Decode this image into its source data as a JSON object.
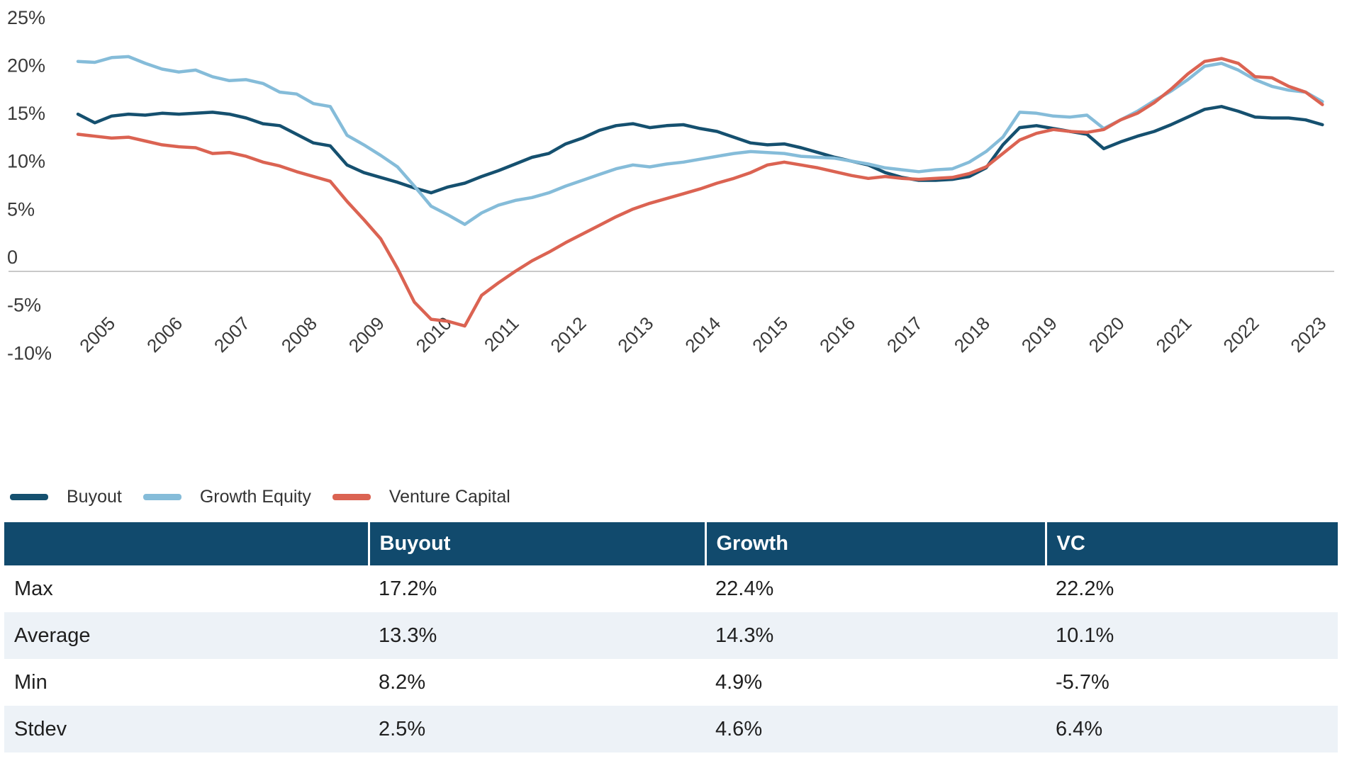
{
  "chart_data": {
    "type": "line",
    "title": "",
    "xlabel": "",
    "ylabel": "",
    "x_frequency": "quarterly",
    "x_range": [
      "2005Q1",
      "2023Q3"
    ],
    "year_labels": [
      "2005",
      "2006",
      "2007",
      "2008",
      "2009",
      "2010",
      "2011",
      "2012",
      "2013",
      "2014",
      "2015",
      "2016",
      "2017",
      "2018",
      "2019",
      "2020",
      "2021",
      "2022",
      "2023"
    ],
    "y_ticks": [
      {
        "label": "25%",
        "value": 25
      },
      {
        "label": "20%",
        "value": 20
      },
      {
        "label": "15%",
        "value": 15
      },
      {
        "label": "10%",
        "value": 10
      },
      {
        "label": "5%",
        "value": 5
      },
      {
        "label": "0",
        "value": 0
      },
      {
        "label": "-5%",
        "value": -5
      },
      {
        "label": "-10%",
        "value": -10
      }
    ],
    "ylim": [
      -10,
      25
    ],
    "grid": "zero-line-only",
    "legend_position": "bottom-left",
    "series": [
      {
        "name": "Buyout",
        "color": "#15506f",
        "values": [
          16.4,
          15.5,
          16.2,
          16.4,
          16.3,
          16.5,
          16.4,
          16.5,
          16.6,
          16.4,
          16.0,
          15.4,
          15.2,
          14.3,
          13.4,
          13.1,
          11.1,
          10.3,
          9.8,
          9.3,
          8.7,
          8.2,
          8.8,
          9.2,
          9.9,
          10.5,
          11.2,
          11.9,
          12.3,
          13.3,
          13.9,
          14.7,
          15.2,
          15.4,
          15.0,
          15.2,
          15.3,
          14.9,
          14.6,
          14.0,
          13.4,
          13.2,
          13.3,
          12.9,
          12.4,
          11.9,
          11.5,
          11.1,
          10.3,
          9.8,
          9.5,
          9.5,
          9.6,
          9.9,
          10.8,
          13.2,
          15.0,
          15.2,
          14.9,
          14.6,
          14.3,
          12.8,
          13.5,
          14.1,
          14.6,
          15.3,
          16.1,
          16.9,
          17.2,
          16.7,
          16.1,
          16.0,
          16.0,
          15.8,
          15.3
        ]
      },
      {
        "name": "Growth Equity",
        "color": "#85bcd9",
        "values": [
          21.9,
          21.8,
          22.3,
          22.4,
          21.7,
          21.1,
          20.8,
          21.0,
          20.3,
          19.9,
          20.0,
          19.6,
          18.7,
          18.5,
          17.5,
          17.2,
          14.2,
          13.2,
          12.1,
          10.9,
          8.9,
          6.8,
          5.9,
          4.9,
          6.1,
          6.9,
          7.4,
          7.7,
          8.2,
          8.9,
          9.5,
          10.1,
          10.7,
          11.1,
          10.9,
          11.2,
          11.4,
          11.7,
          12.0,
          12.3,
          12.5,
          12.4,
          12.3,
          12.0,
          11.9,
          11.8,
          11.5,
          11.2,
          10.8,
          10.6,
          10.4,
          10.6,
          10.7,
          11.4,
          12.5,
          14.0,
          16.6,
          16.5,
          16.2,
          16.1,
          16.3,
          14.9,
          15.8,
          16.7,
          17.8,
          18.8,
          20.0,
          21.4,
          21.7,
          21.0,
          20.0,
          19.3,
          18.9,
          18.7,
          17.7
        ]
      },
      {
        "name": "Venture Capital",
        "color": "#db6352",
        "values": [
          14.3,
          14.1,
          13.9,
          14.0,
          13.6,
          13.2,
          13.0,
          12.9,
          12.3,
          12.4,
          12.0,
          11.4,
          11.0,
          10.4,
          9.9,
          9.4,
          7.3,
          5.4,
          3.4,
          0.3,
          -3.2,
          -5.0,
          -5.2,
          -5.7,
          -2.5,
          -1.2,
          0.0,
          1.1,
          2.0,
          3.0,
          3.9,
          4.8,
          5.7,
          6.5,
          7.1,
          7.6,
          8.1,
          8.6,
          9.2,
          9.7,
          10.3,
          11.1,
          11.4,
          11.1,
          10.8,
          10.4,
          10.0,
          9.7,
          9.9,
          9.7,
          9.6,
          9.7,
          9.8,
          10.2,
          10.9,
          12.3,
          13.7,
          14.4,
          14.8,
          14.6,
          14.5,
          14.8,
          15.8,
          16.5,
          17.6,
          19.0,
          20.6,
          21.9,
          22.2,
          21.7,
          20.3,
          20.2,
          19.3,
          18.7,
          17.4
        ]
      }
    ]
  },
  "legend": {
    "items": [
      {
        "label": "Buyout",
        "color": "#15506f"
      },
      {
        "label": "Growth Equity",
        "color": "#85bcd9"
      },
      {
        "label": "Venture Capital",
        "color": "#db6352"
      }
    ]
  },
  "table": {
    "headers": {
      "label": "",
      "buyout": "Buyout",
      "growth": "Growth",
      "vc": "VC"
    },
    "rows": [
      {
        "label": "Max",
        "buyout": "17.2%",
        "growth": "22.4%",
        "vc": "22.2%"
      },
      {
        "label": "Average",
        "buyout": "13.3%",
        "growth": "14.3%",
        "vc": "10.1%"
      },
      {
        "label": "Min",
        "buyout": "8.2%",
        "growth": "4.9%",
        "vc": "-5.7%"
      },
      {
        "label": "Stdev",
        "buyout": "2.5%",
        "growth": "4.6%",
        "vc": "6.4%"
      }
    ]
  },
  "colors": {
    "table_header_bg": "#114a6d",
    "table_row_alt_bg": "#edf2f7",
    "axis_text": "#3a3a3a",
    "zero_line": "#c9c9c9",
    "body_text": "#1f1f1f"
  }
}
